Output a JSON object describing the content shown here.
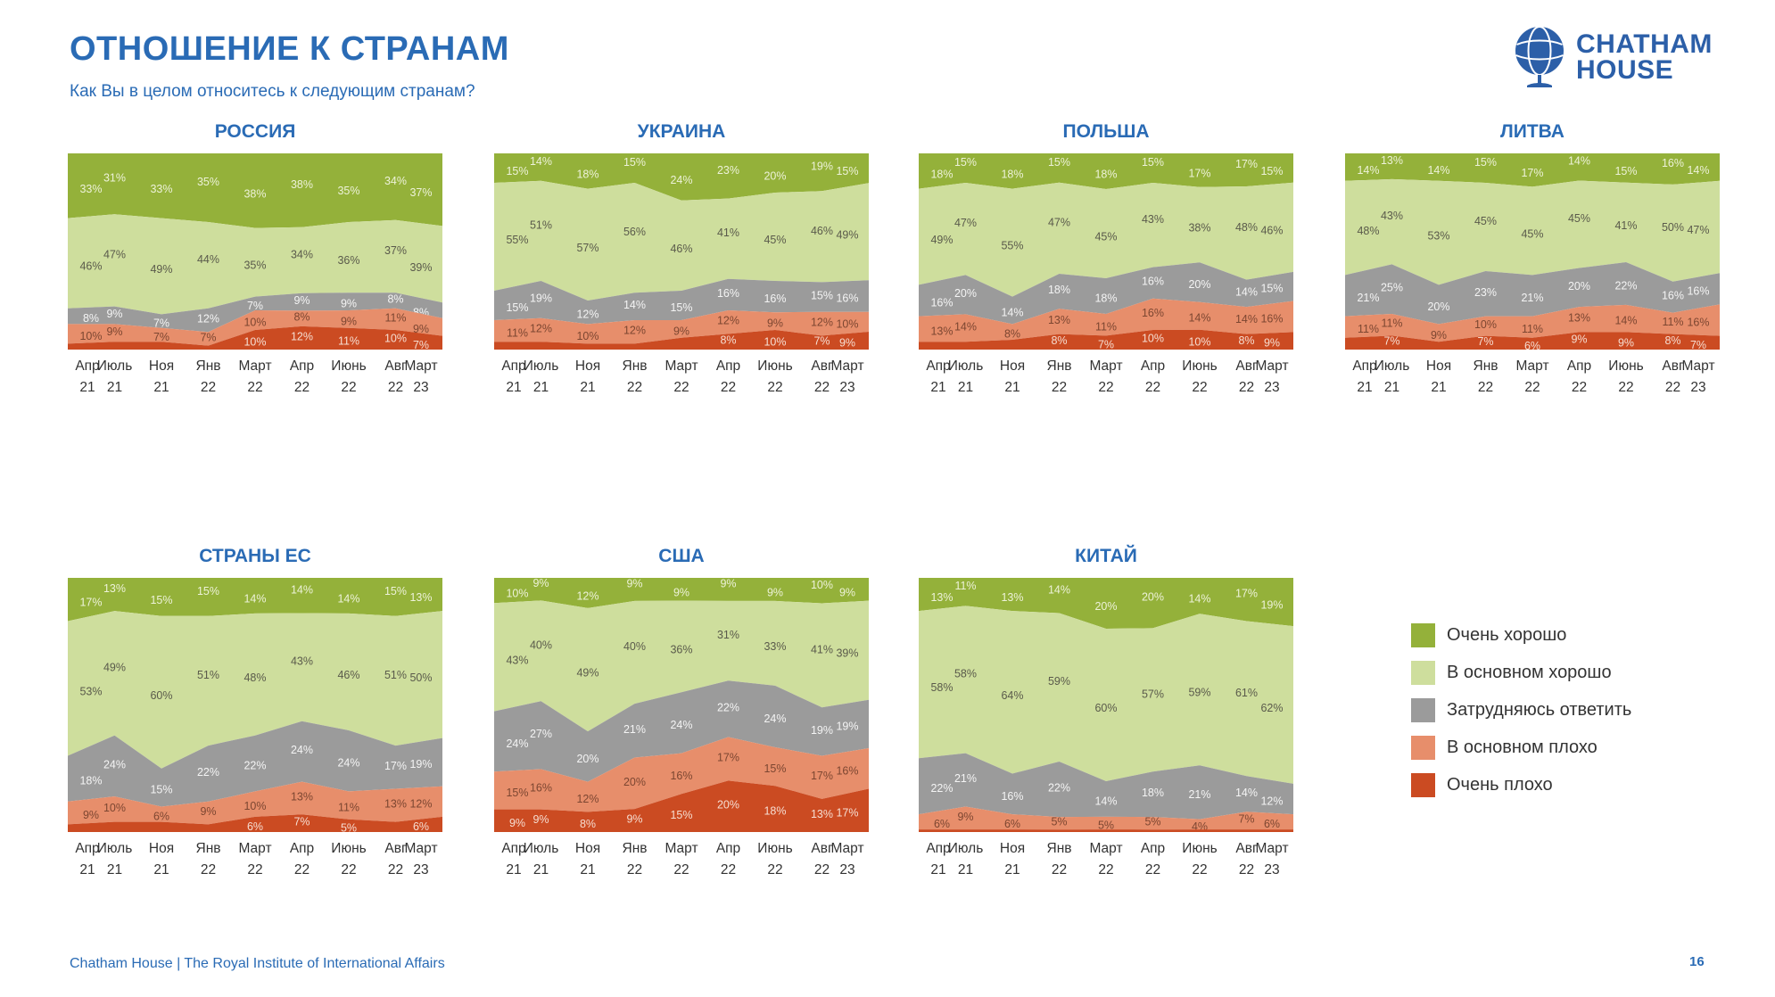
{
  "header": {
    "title": "ОТНОШЕНИЕ К СТРАНАМ",
    "subtitle": "Как Вы в целом относитесь к следующим странам?"
  },
  "logo": {
    "line1": "CHATHAM",
    "line2": "HOUSE"
  },
  "footer": {
    "text": "Chatham House  |  The Royal Institute of International Affairs",
    "page": "16"
  },
  "colors": {
    "very_good": "#94b13a",
    "mostly_good": "#cede9d",
    "dk": "#9b9b9b",
    "mostly_bad": "#e78e6b",
    "very_bad": "#cb4b22",
    "accent_blue": "#2a6bb5",
    "logo_blue": "#2c5fa8"
  },
  "label_colors": {
    "very_good": "#edf2d8",
    "mostly_good": "#5a5a4b",
    "dk": "#f4f4f4",
    "mostly_bad": "#7c4631",
    "very_bad": "#f6ddd1"
  },
  "axis": {
    "months": [
      "Апр",
      "Июль",
      "Ноя",
      "Янв",
      "Март",
      "Апр",
      "Июнь",
      "Авг",
      "Март"
    ],
    "years": [
      "21",
      "21",
      "21",
      "22",
      "22",
      "22",
      "22",
      "22",
      "23"
    ]
  },
  "legend": {
    "items": [
      {
        "key": "very_good",
        "label": "Очень хорошо"
      },
      {
        "key": "mostly_good",
        "label": "В основном хорошо"
      },
      {
        "key": "dk",
        "label": "Затрудняюсь ответить"
      },
      {
        "key": "mostly_bad",
        "label": "В основном плохо"
      },
      {
        "key": "very_bad",
        "label": "Очень плохо"
      }
    ]
  },
  "chart_data": [
    {
      "type": "area",
      "title": "РОССИЯ",
      "categories": [
        "Апр 21",
        "Июль 21",
        "Ноя 21",
        "Янв 22",
        "Март 22",
        "Апр 22",
        "Июнь 22",
        "Авг 22",
        "Март 23"
      ],
      "series": [
        {
          "key": "very_good",
          "name": "Очень хорошо",
          "values": [
            33,
            31,
            33,
            35,
            38,
            38,
            35,
            34,
            37
          ],
          "labels": [
            "33%",
            "31%",
            "33%",
            "35%",
            "38%",
            "38%",
            "35%",
            "34%",
            "37%"
          ]
        },
        {
          "key": "mostly_good",
          "name": "В основном хорошо",
          "values": [
            46,
            47,
            49,
            44,
            35,
            34,
            36,
            37,
            39
          ],
          "labels": [
            "46%",
            "47%",
            "49%",
            "44%",
            "35%",
            "34%",
            "36%",
            "37%",
            "39%"
          ]
        },
        {
          "key": "dk",
          "name": "Затрудняюсь ответить",
          "values": [
            8,
            9,
            7,
            12,
            7,
            9,
            9,
            8,
            8
          ],
          "labels": [
            "8%",
            "9%",
            "7%",
            "12%",
            "7%",
            "9%",
            "9%",
            "8%",
            "8%"
          ]
        },
        {
          "key": "mostly_bad",
          "name": "В основном плохо",
          "values": [
            10,
            9,
            7,
            7,
            10,
            8,
            9,
            11,
            9
          ],
          "labels": [
            "10%",
            "9%",
            "7%",
            "7%",
            "10%",
            "8%",
            "9%",
            "11%",
            "9%"
          ]
        },
        {
          "key": "very_bad",
          "name": "Очень плохо",
          "values": [
            3,
            4,
            4,
            2,
            10,
            12,
            11,
            10,
            7
          ],
          "labels": [
            "",
            "",
            "",
            "",
            "10%",
            "12%",
            "11%",
            "10%",
            "7%"
          ]
        }
      ]
    },
    {
      "type": "area",
      "title": "УКРАИНА",
      "categories": [
        "Апр 21",
        "Июль 21",
        "Ноя 21",
        "Янв 22",
        "Март 22",
        "Апр 22",
        "Июнь 22",
        "Авг 22",
        "Март 23"
      ],
      "series": [
        {
          "key": "very_good",
          "name": "Очень хорошо",
          "values": [
            15,
            14,
            18,
            15,
            24,
            23,
            20,
            19,
            15
          ],
          "labels": [
            "15%",
            "14%",
            "18%",
            "15%",
            "24%",
            "23%",
            "20%",
            "19%",
            "15%"
          ]
        },
        {
          "key": "mostly_good",
          "name": "В основном хорошо",
          "values": [
            55,
            51,
            57,
            56,
            46,
            41,
            45,
            46,
            49
          ],
          "labels": [
            "55%",
            "51%",
            "57%",
            "56%",
            "46%",
            "41%",
            "45%",
            "46%",
            "49%"
          ]
        },
        {
          "key": "dk",
          "name": "Затрудняюсь ответить",
          "values": [
            15,
            19,
            12,
            14,
            15,
            16,
            16,
            15,
            16
          ],
          "labels": [
            "15%",
            "19%",
            "12%",
            "14%",
            "15%",
            "16%",
            "16%",
            "15%",
            "16%"
          ]
        },
        {
          "key": "mostly_bad",
          "name": "В основном плохо",
          "values": [
            11,
            12,
            10,
            12,
            9,
            12,
            9,
            12,
            10
          ],
          "labels": [
            "11%",
            "12%",
            "10%",
            "12%",
            "9%",
            "12%",
            "9%",
            "12%",
            "10%"
          ]
        },
        {
          "key": "very_bad",
          "name": "Очень плохо",
          "values": [
            4,
            4,
            3,
            3,
            6,
            8,
            10,
            7,
            9
          ],
          "labels": [
            "",
            "",
            "",
            "",
            "",
            "8%",
            "10%",
            "7%",
            "9%"
          ]
        }
      ]
    },
    {
      "type": "area",
      "title": "ПОЛЬША",
      "categories": [
        "Апр 21",
        "Июль 21",
        "Ноя 21",
        "Янв 22",
        "Март 22",
        "Апр 22",
        "Июнь 22",
        "Авг 22",
        "Март 23"
      ],
      "series": [
        {
          "key": "very_good",
          "name": "Очень хорошо",
          "values": [
            18,
            15,
            18,
            15,
            18,
            15,
            17,
            17,
            15
          ],
          "labels": [
            "18%",
            "15%",
            "18%",
            "15%",
            "18%",
            "15%",
            "17%",
            "17%",
            "15%"
          ]
        },
        {
          "key": "mostly_good",
          "name": "В основном хорошо",
          "values": [
            49,
            47,
            55,
            47,
            45,
            43,
            38,
            48,
            46
          ],
          "labels": [
            "49%",
            "47%",
            "55%",
            "47%",
            "45%",
            "43%",
            "38%",
            "48%",
            "46%"
          ]
        },
        {
          "key": "dk",
          "name": "Затрудняюсь ответить",
          "values": [
            16,
            20,
            14,
            18,
            18,
            16,
            20,
            14,
            15
          ],
          "labels": [
            "16%",
            "20%",
            "14%",
            "18%",
            "18%",
            "16%",
            "20%",
            "14%",
            "15%"
          ]
        },
        {
          "key": "mostly_bad",
          "name": "В основном плохо",
          "values": [
            13,
            14,
            8,
            13,
            11,
            16,
            14,
            14,
            16
          ],
          "labels": [
            "13%",
            "14%",
            "8%",
            "13%",
            "11%",
            "16%",
            "14%",
            "14%",
            "16%"
          ]
        },
        {
          "key": "very_bad",
          "name": "Очень плохо",
          "values": [
            4,
            4,
            5,
            8,
            7,
            10,
            10,
            8,
            9
          ],
          "labels": [
            "",
            "",
            "",
            "8%",
            "7%",
            "10%",
            "10%",
            "8%",
            "9%"
          ]
        }
      ]
    },
    {
      "type": "area",
      "title": "ЛИТВА",
      "categories": [
        "Апр 21",
        "Июль 21",
        "Ноя 21",
        "Янв 22",
        "Март 22",
        "Апр 22",
        "Июнь 22",
        "Авг 22",
        "Март 23"
      ],
      "series": [
        {
          "key": "very_good",
          "name": "Очень хорошо",
          "values": [
            14,
            13,
            14,
            15,
            17,
            14,
            15,
            16,
            14
          ],
          "labels": [
            "14%",
            "13%",
            "14%",
            "15%",
            "17%",
            "14%",
            "15%",
            "16%",
            "14%"
          ]
        },
        {
          "key": "mostly_good",
          "name": "В основном хорошо",
          "values": [
            48,
            43,
            53,
            45,
            45,
            45,
            41,
            50,
            47
          ],
          "labels": [
            "48%",
            "43%",
            "53%",
            "45%",
            "45%",
            "45%",
            "41%",
            "50%",
            "47%"
          ]
        },
        {
          "key": "dk",
          "name": "Затрудняюсь ответить",
          "values": [
            21,
            25,
            20,
            23,
            21,
            20,
            22,
            16,
            16
          ],
          "labels": [
            "21%",
            "25%",
            "20%",
            "23%",
            "21%",
            "20%",
            "22%",
            "16%",
            "16%"
          ]
        },
        {
          "key": "mostly_bad",
          "name": "В основном плохо",
          "values": [
            11,
            11,
            9,
            10,
            11,
            13,
            14,
            11,
            16
          ],
          "labels": [
            "11%",
            "11%",
            "9%",
            "10%",
            "11%",
            "13%",
            "14%",
            "11%",
            "16%"
          ]
        },
        {
          "key": "very_bad",
          "name": "Очень плохо",
          "values": [
            6,
            7,
            4,
            7,
            6,
            9,
            9,
            8,
            7
          ],
          "labels": [
            "",
            "7%",
            "",
            "7%",
            "6%",
            "9%",
            "9%",
            "8%",
            "7%"
          ]
        }
      ]
    },
    {
      "type": "area",
      "title": "СТРАНЫ ЕС",
      "categories": [
        "Апр 21",
        "Июль 21",
        "Ноя 21",
        "Янв 22",
        "Март 22",
        "Апр 22",
        "Июнь 22",
        "Авг 22",
        "Март 23"
      ],
      "series": [
        {
          "key": "very_good",
          "name": "Очень хорошо",
          "values": [
            17,
            13,
            15,
            15,
            14,
            14,
            14,
            15,
            13
          ],
          "labels": [
            "17%",
            "13%",
            "15%",
            "15%",
            "14%",
            "14%",
            "14%",
            "15%",
            "13%"
          ]
        },
        {
          "key": "mostly_good",
          "name": "В основном хорошо",
          "values": [
            53,
            49,
            60,
            51,
            48,
            43,
            46,
            51,
            50
          ],
          "labels": [
            "53%",
            "49%",
            "60%",
            "51%",
            "48%",
            "43%",
            "46%",
            "51%",
            "50%"
          ]
        },
        {
          "key": "dk",
          "name": "Затрудняюсь ответить",
          "values": [
            18,
            24,
            15,
            22,
            22,
            24,
            24,
            17,
            19
          ],
          "labels": [
            "18%",
            "24%",
            "15%",
            "22%",
            "22%",
            "24%",
            "24%",
            "17%",
            "19%"
          ]
        },
        {
          "key": "mostly_bad",
          "name": "В основном плохо",
          "values": [
            9,
            10,
            6,
            9,
            10,
            13,
            11,
            13,
            12
          ],
          "labels": [
            "9%",
            "10%",
            "6%",
            "9%",
            "10%",
            "13%",
            "11%",
            "13%",
            "12%"
          ]
        },
        {
          "key": "very_bad",
          "name": "Очень плохо",
          "values": [
            3,
            4,
            4,
            3,
            6,
            7,
            5,
            4,
            6
          ],
          "labels": [
            "",
            "",
            "",
            "",
            "6%",
            "7%",
            "5%",
            "",
            "6%"
          ]
        }
      ]
    },
    {
      "type": "area",
      "title": "США",
      "categories": [
        "Апр 21",
        "Июль 21",
        "Ноя 21",
        "Янв 22",
        "Март 22",
        "Апр 22",
        "Июнь 22",
        "Авг 22",
        "Март 23"
      ],
      "series": [
        {
          "key": "very_good",
          "name": "Очень хорошо",
          "values": [
            10,
            9,
            12,
            9,
            9,
            9,
            9,
            10,
            9
          ],
          "labels": [
            "10%",
            "9%",
            "12%",
            "9%",
            "9%",
            "9%",
            "9%",
            "10%",
            "9%"
          ]
        },
        {
          "key": "mostly_good",
          "name": "В основном хорошо",
          "values": [
            43,
            40,
            49,
            40,
            36,
            31,
            33,
            41,
            39
          ],
          "labels": [
            "43%",
            "40%",
            "49%",
            "40%",
            "36%",
            "31%",
            "33%",
            "41%",
            "39%"
          ]
        },
        {
          "key": "dk",
          "name": "Затрудняюсь ответить",
          "values": [
            24,
            27,
            20,
            21,
            24,
            22,
            24,
            19,
            19
          ],
          "labels": [
            "24%",
            "27%",
            "20%",
            "21%",
            "24%",
            "22%",
            "24%",
            "19%",
            "19%"
          ]
        },
        {
          "key": "mostly_bad",
          "name": "В основном плохо",
          "values": [
            15,
            16,
            12,
            20,
            16,
            17,
            15,
            17,
            16
          ],
          "labels": [
            "15%",
            "16%",
            "12%",
            "20%",
            "16%",
            "17%",
            "15%",
            "17%",
            "16%"
          ]
        },
        {
          "key": "very_bad",
          "name": "Очень плохо",
          "values": [
            9,
            9,
            8,
            9,
            15,
            20,
            18,
            13,
            17
          ],
          "labels": [
            "9%",
            "9%",
            "8%",
            "9%",
            "15%",
            "20%",
            "18%",
            "13%",
            "17%"
          ]
        }
      ]
    },
    {
      "type": "area",
      "title": "КИТАЙ",
      "categories": [
        "Апр 21",
        "Июль 21",
        "Ноя 21",
        "Янв 22",
        "Март 22",
        "Апр 22",
        "Июнь 22",
        "Авг 22",
        "Март 23"
      ],
      "series": [
        {
          "key": "very_good",
          "name": "Очень хорошо",
          "values": [
            13,
            11,
            13,
            14,
            20,
            20,
            14,
            17,
            19
          ],
          "labels": [
            "13%",
            "11%",
            "13%",
            "14%",
            "20%",
            "20%",
            "14%",
            "17%",
            "19%"
          ]
        },
        {
          "key": "mostly_good",
          "name": "В основном хорошо",
          "values": [
            58,
            58,
            64,
            59,
            60,
            57,
            59,
            61,
            62
          ],
          "labels": [
            "58%",
            "58%",
            "64%",
            "59%",
            "60%",
            "57%",
            "59%",
            "61%",
            "62%"
          ]
        },
        {
          "key": "dk",
          "name": "Затрудняюсь ответить",
          "values": [
            22,
            21,
            16,
            22,
            14,
            18,
            21,
            14,
            12
          ],
          "labels": [
            "22%",
            "21%",
            "16%",
            "22%",
            "14%",
            "18%",
            "21%",
            "14%",
            "12%"
          ]
        },
        {
          "key": "mostly_bad",
          "name": "В основном плохо",
          "values": [
            6,
            9,
            6,
            5,
            5,
            5,
            4,
            7,
            6
          ],
          "labels": [
            "6%",
            "9%",
            "6%",
            "5%",
            "5%",
            "5%",
            "4%",
            "7%",
            "6%"
          ]
        },
        {
          "key": "very_bad",
          "name": "Очень плохо",
          "values": [
            1,
            1,
            1,
            1,
            1,
            1,
            1,
            1,
            1
          ],
          "labels": [
            "",
            "",
            "",
            "",
            "",
            "",
            "",
            "",
            ""
          ]
        }
      ]
    }
  ]
}
